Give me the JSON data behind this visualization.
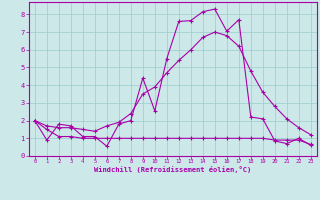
{
  "xlabel": "Windchill (Refroidissement éolien,°C)",
  "xlim": [
    -0.5,
    23.5
  ],
  "ylim": [
    0,
    8.7
  ],
  "xticks": [
    0,
    1,
    2,
    3,
    4,
    5,
    6,
    7,
    8,
    9,
    10,
    11,
    12,
    13,
    14,
    15,
    16,
    17,
    18,
    19,
    20,
    21,
    22,
    23
  ],
  "yticks": [
    0,
    1,
    2,
    3,
    4,
    5,
    6,
    7,
    8
  ],
  "bg_color": "#cce8e8",
  "line_color": "#aa00aa",
  "grid_color": "#99cccc",
  "series1_x": [
    0,
    1,
    2,
    3,
    4,
    5,
    6,
    7,
    8,
    9,
    10,
    11,
    12,
    13,
    14,
    15,
    16,
    17,
    18,
    19,
    20,
    21,
    22,
    23
  ],
  "series1_y": [
    2.0,
    0.9,
    1.8,
    1.7,
    1.1,
    1.1,
    0.55,
    1.8,
    2.0,
    4.4,
    2.55,
    5.5,
    7.6,
    7.65,
    8.15,
    8.3,
    7.05,
    7.7,
    2.2,
    2.1,
    0.85,
    0.7,
    1.0,
    0.6
  ],
  "series2_x": [
    0,
    1,
    2,
    3,
    4,
    5,
    6,
    7,
    8,
    9,
    10,
    11,
    12,
    13,
    14,
    15,
    16,
    17,
    18,
    19,
    20,
    21,
    22,
    23
  ],
  "series2_y": [
    2.0,
    1.7,
    1.6,
    1.6,
    1.5,
    1.4,
    1.7,
    1.9,
    2.4,
    3.5,
    3.9,
    4.7,
    5.4,
    6.0,
    6.7,
    7.0,
    6.8,
    6.2,
    4.8,
    3.6,
    2.8,
    2.1,
    1.6,
    1.2
  ],
  "series3_x": [
    0,
    1,
    2,
    3,
    4,
    5,
    6,
    7,
    8,
    9,
    10,
    11,
    12,
    13,
    14,
    15,
    16,
    17,
    18,
    19,
    20,
    21,
    22,
    23
  ],
  "series3_y": [
    2.0,
    1.5,
    1.1,
    1.1,
    1.0,
    1.0,
    1.0,
    1.0,
    1.0,
    1.0,
    1.0,
    1.0,
    1.0,
    1.0,
    1.0,
    1.0,
    1.0,
    1.0,
    1.0,
    1.0,
    0.9,
    0.9,
    0.9,
    0.65
  ]
}
